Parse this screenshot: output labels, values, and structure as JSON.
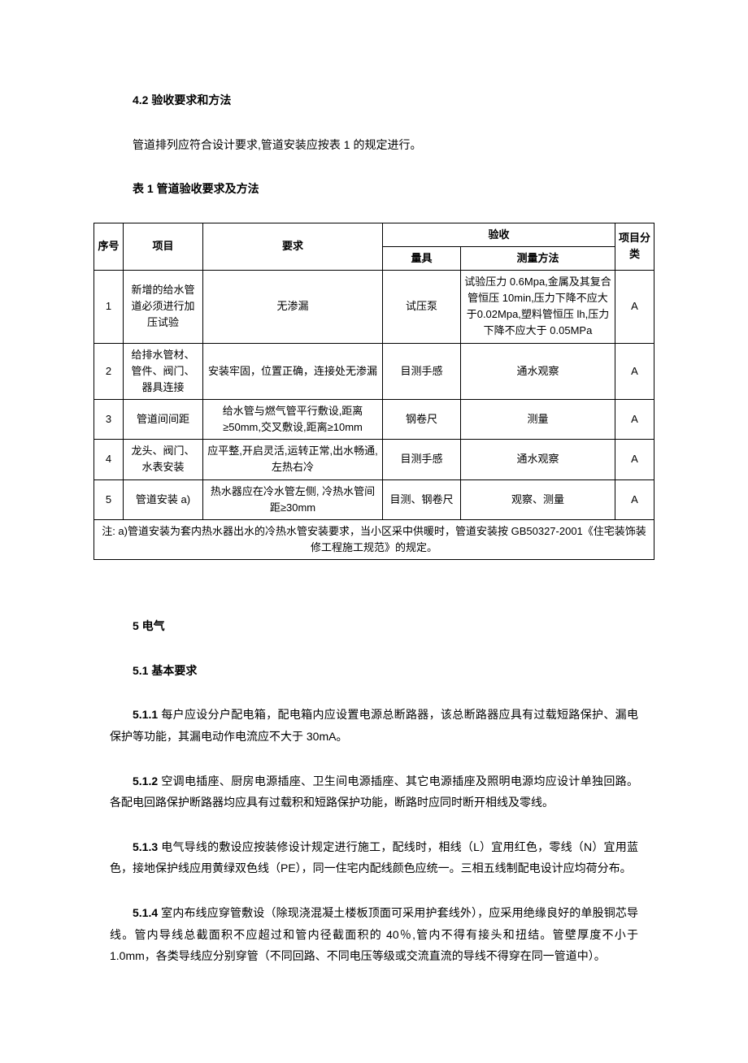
{
  "sec42": {
    "heading": "4.2 验收要求和方法",
    "intro": "管道排列应符合设计要求,管道安装应按表 1 的规定进行。",
    "tableCaption": "表 1 管道验收要求及方法"
  },
  "table1": {
    "header": {
      "seq": "序号",
      "item": "项目",
      "req": "要求",
      "accept": "验收",
      "tool": "量具",
      "method": "测量方法",
      "cat": "项目分类"
    },
    "rows": [
      {
        "seq": "1",
        "item": "新增的给水管道必须进行加压试验",
        "req": "无渗漏",
        "tool": "试压泵",
        "method": "试验压力 0.6Mpa,金属及其复合管恒压 10min,压力下降不应大于0.02Mpa,塑料管恒压 lh,压力下降不应大于 0.05MPa",
        "cat": "A"
      },
      {
        "seq": "2",
        "item": "给排水管材、管件、阀门、器具连接",
        "req": "安装牢固，位置正确，连接处无渗漏",
        "tool": "目测手感",
        "method": "通水观察",
        "cat": "A"
      },
      {
        "seq": "3",
        "item": "管道间间距",
        "req": "给水管与燃气管平行敷设,距离≥50mm,交叉敷设,距离≥10mm",
        "tool": "钢卷尺",
        "method": "测量",
        "cat": "A"
      },
      {
        "seq": "4",
        "item": "龙头、阀门、水表安装",
        "req": "应平整,开启灵活,运转正常,出水畅通,左热右冷",
        "tool": "目测手感",
        "method": "通水观察",
        "cat": "A"
      },
      {
        "seq": "5",
        "item": "管道安装 a)",
        "req": "热水器应在冷水管左侧, 冷热水管间距≥30mm",
        "tool": "目测、钢卷尺",
        "method": "观察、测量",
        "cat": "A"
      }
    ],
    "note": "注: a)管道安装为套内热水器出水的冷热水管安装要求，当小区采中供暖时，管道安装按 GB50327-2001《住宅装饰装修工程施工规范》的规定。"
  },
  "sec5": {
    "heading": "5 电气",
    "sub51": "5.1 基本要求",
    "c511num": "5.1.1",
    "c511": " 每户应设分户配电箱，配电箱内应设置电源总断路器，该总断路器应具有过载短路保护、漏电保护等功能，其漏电动作电流应不大于 30mA。",
    "c512num": "5.1.2",
    "c512": " 空调电插座、厨房电源插座、卫生间电源插座、其它电源插座及照明电源均应设计单独回路。各配电回路保护断路器均应具有过载积和短路保护功能，断路时应同时断开相线及零线。",
    "c513num": "5.1.3",
    "c513": " 电气导线的敷设应按装修设计规定进行施工，配线时，相线（L）宜用红色，零线（N）宜用蓝色，接地保护线应用黄绿双色线（PE），同一住宅内配线颜色应统一。三相五线制配电设计应均荷分布。",
    "c514num": "5.1.4",
    "c514": " 室内布线应穿管敷设（除现浇混凝土楼板顶面可采用护套线外），应采用绝缘良好的单股铜芯导线。管内导线总截面积不应超过和管内径截面积的 40％,管内不得有接头和扭结。管壁厚度不小于 1.0mm，各类导线应分别穿管（不同回路、不同电压等级或交流直流的导线不得穿在同一管道中）。"
  }
}
